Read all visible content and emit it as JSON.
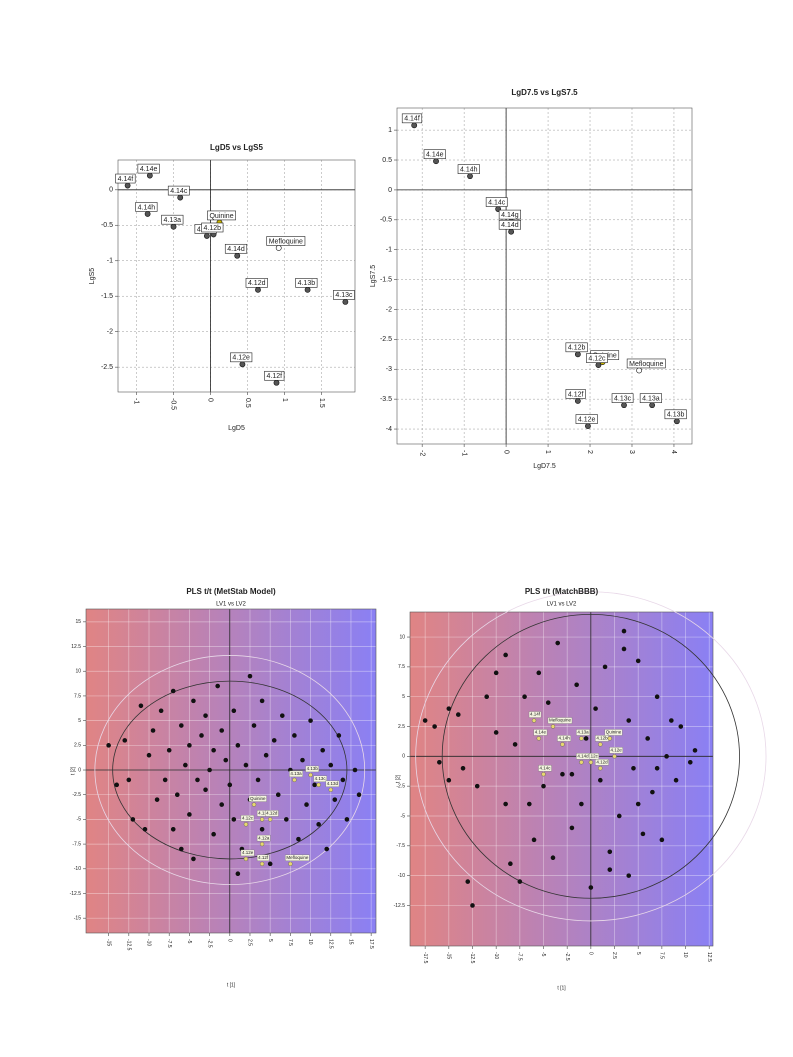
{
  "chart_data": [
    {
      "type": "scatter",
      "title": "LgD5 vs LgS5",
      "xlabel": "LgD5",
      "ylabel": "LgS5",
      "xlim": [
        -1.25,
        1.95
      ],
      "ylim": [
        -2.85,
        0.42
      ],
      "xticks": [
        -1,
        -0.5,
        0,
        0.5,
        1,
        1.5
      ],
      "yticks": [
        0,
        -0.5,
        -1,
        -1.5,
        -2,
        -2.5
      ],
      "grid": true,
      "point_labels": [
        "4.14f",
        "4.14e",
        "4.14c",
        "4.14h",
        "4.13a",
        "Quinine",
        "4.14a",
        "4.12b",
        "Mefloquine",
        "4.14d",
        "4.12d",
        "4.13b",
        "4.13c",
        "4.12e",
        "4.12f"
      ],
      "x": [
        -1.12,
        -0.82,
        -0.41,
        -0.85,
        -0.5,
        0.12,
        -0.05,
        0.04,
        0.92,
        0.36,
        0.64,
        1.31,
        1.82,
        0.43,
        0.89
      ],
      "values": [
        0.06,
        0.2,
        -0.11,
        -0.34,
        -0.52,
        -0.46,
        -0.65,
        -0.63,
        -0.82,
        -0.93,
        -1.41,
        -1.41,
        -1.58,
        -2.46,
        -2.72
      ],
      "point_colors": [
        "#555",
        "#555",
        "#555",
        "#555",
        "#555",
        "#c8b400",
        "#555",
        "#555",
        "#ffffff",
        "#555",
        "#555",
        "#555",
        "#555",
        "#555",
        "#555"
      ]
    },
    {
      "type": "scatter",
      "title": "LgD7.5 vs LgS7.5",
      "xlabel": "LgD7.5",
      "ylabel": "LgS7.5",
      "xlim": [
        -2.6,
        4.43
      ],
      "ylim": [
        -4.25,
        1.37
      ],
      "xticks": [
        -2,
        -1,
        0,
        1,
        2,
        3,
        4
      ],
      "yticks": [
        1,
        0.5,
        0,
        -0.5,
        -1,
        -1.5,
        -2,
        -2.5,
        -3,
        -3.5,
        -4
      ],
      "grid": true,
      "point_labels": [
        "4.14f",
        "4.14e",
        "4.14h",
        "4.14c",
        "4.14g",
        "4.14d",
        "4.12b",
        "Quinine",
        "4.12c",
        "Mefloquine",
        "4.12f",
        "4.12e",
        "4.13c",
        "4.13a",
        "4.13b"
      ],
      "x": [
        -2.19,
        -1.67,
        -0.86,
        -0.19,
        0.12,
        0.12,
        1.71,
        2.3,
        2.2,
        3.17,
        1.71,
        1.95,
        2.81,
        3.48,
        4.07
      ],
      "values": [
        1.08,
        0.48,
        0.23,
        -0.32,
        -0.53,
        -0.7,
        -2.75,
        -2.88,
        -2.93,
        -3.02,
        -3.53,
        -3.95,
        -3.6,
        -3.6,
        -3.87
      ],
      "point_colors": [
        "#555",
        "#555",
        "#555",
        "#555",
        "#555",
        "#555",
        "#555",
        "#c8b400",
        "#555",
        "#ffffff",
        "#555",
        "#555",
        "#555",
        "#555",
        "#555"
      ]
    },
    {
      "type": "scatter",
      "title": "PLS t/t (MetStab Model)",
      "subtitle": "LV1 vs LV2",
      "xlabel": "t [1]",
      "ylabel": "t [2]",
      "xlim": [
        -17.8,
        18.1
      ],
      "ylim": [
        -16.5,
        16.3
      ],
      "xticks": [
        -15,
        -12.5,
        -10,
        -7.5,
        -5,
        -2.5,
        0,
        2.5,
        5,
        7.5,
        10,
        12.5,
        15,
        17.5
      ],
      "yticks": [
        15,
        12.5,
        10,
        7.5,
        5,
        2.5,
        0,
        -2.5,
        -5,
        -7.5,
        -10,
        -12.5,
        -15
      ],
      "grid": true,
      "background_colors": [
        "#e08484",
        "#8a80f4"
      ],
      "ellipses": [
        {
          "rx": 16.7,
          "ry": 11.6,
          "color": "#e8d8e8"
        },
        {
          "rx": 14.5,
          "ry": 9,
          "color": "#333333"
        }
      ],
      "x": [
        -15,
        -13,
        -12.5,
        -11,
        -12,
        -10,
        -9.5,
        -9,
        -8.5,
        -8,
        -7.5,
        -7,
        -7,
        -6.5,
        -6,
        -6,
        -5.5,
        -5,
        -5,
        -4.5,
        -4.5,
        -4,
        -3.5,
        -3,
        -3,
        -2.5,
        -2,
        -2,
        -1.5,
        -1,
        -1,
        -0.5,
        0,
        0.5,
        0.5,
        1,
        1.5,
        2,
        2.5,
        2.5,
        3,
        3.5,
        4,
        4,
        4.5,
        5,
        5.5,
        6,
        6.5,
        7,
        7.5,
        8,
        8.5,
        9,
        9.5,
        10,
        10.5,
        11,
        11.5,
        12,
        12.5,
        13,
        13.5,
        14,
        14.5,
        15.5,
        16,
        -14,
        -10.5,
        1
      ],
      "values": [
        2.5,
        3,
        -1,
        6.5,
        -5,
        1.5,
        4,
        -3,
        6,
        -1,
        2,
        -6,
        8,
        -2.5,
        4.5,
        -8,
        0.5,
        2.5,
        -4.5,
        7,
        -9,
        -1,
        3.5,
        -2,
        5.5,
        0,
        -6.5,
        2,
        8.5,
        -3.5,
        4,
        1,
        -1.5,
        6,
        -5,
        2.5,
        -8,
        0.5,
        9.5,
        -3,
        4.5,
        -1,
        7,
        -6,
        1.5,
        -9.5,
        3,
        -2.5,
        5.5,
        -5,
        0,
        3.5,
        -7,
        1,
        -3.5,
        5,
        -1.5,
        -5.5,
        2,
        -8,
        0.5,
        -3,
        3.5,
        -1,
        -5,
        0,
        -2.5,
        -1.5,
        -6,
        -10.5
      ],
      "color": "#111111",
      "highlight": {
        "color": "#e8d870",
        "labels": [
          "4.13a",
          "4.13b",
          "4.13c",
          "4.13d",
          "Quinine",
          "4.12b",
          "4.12c",
          "4.12d",
          "4.12e",
          "4.12f",
          "4.12a",
          "Mefloquine"
        ],
        "x": [
          8,
          10,
          11,
          12.5,
          3,
          4,
          2,
          5,
          2,
          4,
          4,
          7.5
        ],
        "values": [
          -1,
          -0.5,
          -1.5,
          -2,
          -3.5,
          -5,
          -5.5,
          -5,
          -9,
          -9.5,
          -7.5,
          -9.5
        ]
      }
    },
    {
      "type": "scatter",
      "title": "PLS t/t (MatchBBB)",
      "subtitle": "LV1 vs LV2",
      "xlabel": "t [1]",
      "ylabel": "t [2]",
      "xlim": [
        -19.1,
        12.9
      ],
      "ylim": [
        -15.9,
        12.1
      ],
      "xticks": [
        -17.5,
        -15,
        -12.5,
        -10,
        -7.5,
        -5,
        -2.5,
        0,
        2.5,
        5,
        7.5,
        10,
        12.5
      ],
      "yticks": [
        10,
        7.5,
        5,
        2.5,
        0,
        -2.5,
        -5,
        -7.5,
        -10,
        -12.5
      ],
      "grid": true,
      "background_colors": [
        "#e08484",
        "#8a80f4"
      ],
      "ellipses": [
        {
          "rx": 18.5,
          "ry": 13.8,
          "color": "#e8d8e8"
        },
        {
          "rx": 15.7,
          "ry": 11.9,
          "color": "#333333"
        }
      ],
      "x": [
        -17.5,
        -16.5,
        -16,
        -15,
        -15,
        -14,
        -13.5,
        -12,
        -11,
        -10,
        -9,
        -8.5,
        -8,
        -7.5,
        -7,
        -6.5,
        -6,
        -5.5,
        -5,
        -4.5,
        -4,
        -3.5,
        -3,
        -2.5,
        -2,
        -1.5,
        -1,
        -0.5,
        0,
        0.5,
        1,
        1.5,
        2,
        2.5,
        3,
        3.5,
        4,
        4,
        4.5,
        5,
        5.5,
        6,
        6.5,
        7,
        7.5,
        8,
        8.5,
        9,
        9.5,
        10.5,
        11,
        -12.5,
        -13,
        -9,
        -10,
        5,
        7,
        2,
        -2,
        3.5
      ],
      "values": [
        3,
        2.5,
        -0.5,
        4,
        -2,
        3.5,
        -1,
        -2.5,
        5,
        2,
        8.5,
        -9,
        1,
        -10.5,
        5,
        -4,
        -7,
        7,
        -2.5,
        4.5,
        -8.5,
        9.5,
        -1.5,
        3,
        -6,
        6,
        -4,
        1.5,
        -11,
        4,
        -2,
        7.5,
        -8,
        0.5,
        -5,
        10.5,
        -10,
        3,
        -1,
        8,
        -6.5,
        1.5,
        -3,
        5,
        -7,
        0,
        3,
        -2,
        2.5,
        -0.5,
        0.5,
        -12.5,
        -10.5,
        -4,
        7,
        -4,
        -1,
        -9.5,
        -1.5,
        9
      ],
      "color": "#111111",
      "highlight": {
        "color": "#e8d870",
        "labels": [
          "4.14f",
          "Mefloquine",
          "4.14e",
          "4.14h",
          "4.14c",
          "4.13a",
          "4.12b",
          "Quinine",
          "4.12c",
          "4.12d",
          "4.14d",
          "4.12e"
        ],
        "x": [
          -6,
          -4,
          -5.5,
          -3,
          -5,
          -1,
          1,
          2,
          0,
          1,
          -1,
          2.5
        ],
        "values": [
          3,
          2.5,
          1.5,
          1,
          -1.5,
          1.5,
          1,
          1.5,
          -0.5,
          -1,
          -0.5,
          0
        ]
      }
    }
  ]
}
